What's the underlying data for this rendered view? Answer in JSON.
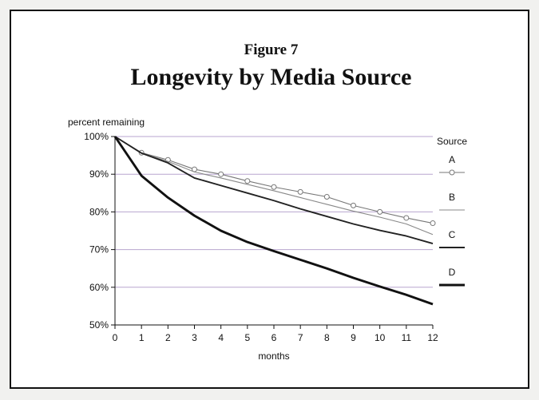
{
  "figure_label": "Figure 7",
  "chart_data": {
    "type": "line",
    "title": "Longevity by Media Source",
    "ylabel": "percent remaining",
    "xlabel": "months",
    "x": [
      0,
      1,
      2,
      3,
      4,
      5,
      6,
      7,
      8,
      9,
      10,
      11,
      12
    ],
    "ylim": [
      50,
      100
    ],
    "yticks": [
      50,
      60,
      70,
      80,
      90,
      100
    ],
    "ytick_labels": [
      "50%",
      "60%",
      "70%",
      "80%",
      "90%",
      "100%"
    ],
    "xtick_labels": [
      "0",
      "1",
      "2",
      "3",
      "4",
      "5",
      "6",
      "7",
      "8",
      "9",
      "10",
      "11",
      "12"
    ],
    "grid": true,
    "legend_title": "Source",
    "legend_position": "right",
    "series": [
      {
        "name": "A",
        "values": [
          100,
          95.7,
          93.8,
          91.3,
          90.0,
          88.2,
          86.6,
          85.3,
          84.0,
          81.7,
          80.0,
          78.4,
          77.0
        ],
        "color": "#777777",
        "marker": "circle",
        "weight": "thin"
      },
      {
        "name": "B",
        "values": [
          100,
          95.6,
          93.4,
          90.6,
          89.0,
          87.3,
          85.6,
          83.8,
          82.0,
          80.2,
          78.6,
          76.8,
          74.0
        ],
        "color": "#888888",
        "marker": "none",
        "weight": "thin"
      },
      {
        "name": "C",
        "values": [
          100,
          95.6,
          93.0,
          89.0,
          87.0,
          85.0,
          83.0,
          80.8,
          78.8,
          76.8,
          75.1,
          73.6,
          71.6
        ],
        "color": "#222222",
        "marker": "none",
        "weight": "medium"
      },
      {
        "name": "D",
        "values": [
          100,
          89.6,
          83.8,
          79.0,
          75.0,
          72.0,
          69.6,
          67.3,
          65.0,
          62.5,
          60.2,
          58.0,
          55.5
        ],
        "color": "#111111",
        "marker": "none",
        "weight": "heavy"
      }
    ]
  }
}
